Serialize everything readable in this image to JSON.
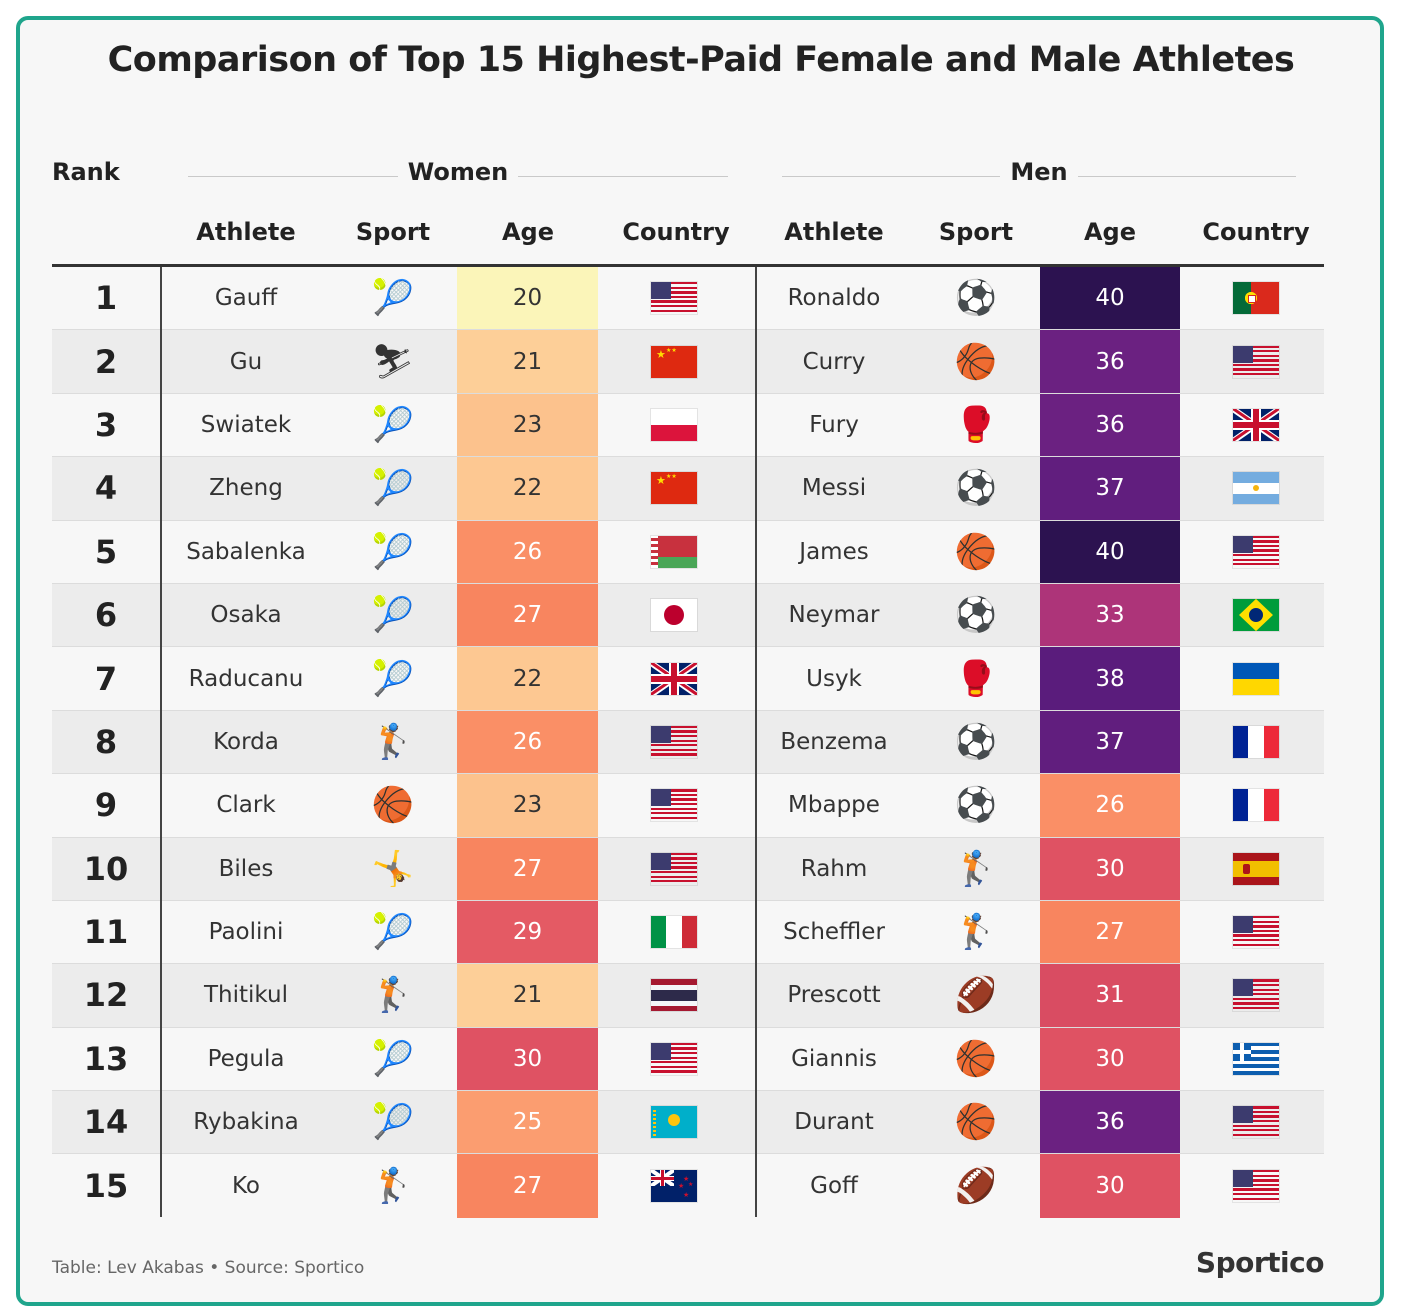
{
  "title": "Comparison of Top 15 Highest-Paid Female and Male Athletes",
  "headers": {
    "rank": "Rank",
    "women": "Women",
    "men": "Men",
    "athlete": "Athlete",
    "sport": "Sport",
    "age": "Age",
    "country": "Country"
  },
  "footer": {
    "credit": "Table: Lev Akabas • Source: Sportico",
    "brand": "Sportico"
  },
  "sport_glyphs": {
    "tennis": "🎾",
    "skiing": "⛷",
    "golf": "🏌",
    "basketball": "🏀",
    "gymnastics": "🤸",
    "soccer": "⚽",
    "boxing": "🥊",
    "football": "🏈"
  },
  "age_colors": {
    "20": "#fbf5b9",
    "21": "#fdcf98",
    "22": "#fdc892",
    "23": "#fcc28d",
    "25": "#fb9d70",
    "26": "#fa8f66",
    "27": "#f8855f",
    "29": "#e45a64",
    "30": "#df5263",
    "31": "#d94c62",
    "33": "#ad3479",
    "36": "#6b2181",
    "37": "#611e7e",
    "38": "#5a1c7c",
    "40": "#2c1250"
  },
  "chart_data": {
    "type": "table",
    "title": "Comparison of Top 15 Highest-Paid Female and Male Athletes",
    "columns": [
      "Rank",
      "Athlete",
      "Sport",
      "Age",
      "Country",
      "Athlete",
      "Sport",
      "Age",
      "Country"
    ],
    "rows": [
      {
        "rank": "1",
        "women": {
          "athlete": "Gauff",
          "sport": "tennis",
          "age": 20,
          "country": "us"
        },
        "men": {
          "athlete": "Ronaldo",
          "sport": "soccer",
          "age": 40,
          "country": "pt"
        }
      },
      {
        "rank": "2",
        "women": {
          "athlete": "Gu",
          "sport": "skiing",
          "age": 21,
          "country": "cn"
        },
        "men": {
          "athlete": "Curry",
          "sport": "basketball",
          "age": 36,
          "country": "us"
        }
      },
      {
        "rank": "3",
        "women": {
          "athlete": "Swiatek",
          "sport": "tennis",
          "age": 23,
          "country": "pl"
        },
        "men": {
          "athlete": "Fury",
          "sport": "boxing",
          "age": 36,
          "country": "gb"
        }
      },
      {
        "rank": "4",
        "women": {
          "athlete": "Zheng",
          "sport": "tennis",
          "age": 22,
          "country": "cn"
        },
        "men": {
          "athlete": "Messi",
          "sport": "soccer",
          "age": 37,
          "country": "ar"
        }
      },
      {
        "rank": "5",
        "women": {
          "athlete": "Sabalenka",
          "sport": "tennis",
          "age": 26,
          "country": "by"
        },
        "men": {
          "athlete": "James",
          "sport": "basketball",
          "age": 40,
          "country": "us"
        }
      },
      {
        "rank": "6",
        "women": {
          "athlete": "Osaka",
          "sport": "tennis",
          "age": 27,
          "country": "jp"
        },
        "men": {
          "athlete": "Neymar",
          "sport": "soccer",
          "age": 33,
          "country": "br"
        }
      },
      {
        "rank": "7",
        "women": {
          "athlete": "Raducanu",
          "sport": "tennis",
          "age": 22,
          "country": "gb"
        },
        "men": {
          "athlete": "Usyk",
          "sport": "boxing",
          "age": 38,
          "country": "ua"
        }
      },
      {
        "rank": "8",
        "women": {
          "athlete": "Korda",
          "sport": "golf",
          "age": 26,
          "country": "us"
        },
        "men": {
          "athlete": "Benzema",
          "sport": "soccer",
          "age": 37,
          "country": "fr"
        }
      },
      {
        "rank": "9",
        "women": {
          "athlete": "Clark",
          "sport": "basketball",
          "age": 23,
          "country": "us"
        },
        "men": {
          "athlete": "Mbappe",
          "sport": "soccer",
          "age": 26,
          "country": "fr"
        }
      },
      {
        "rank": "10",
        "women": {
          "athlete": "Biles",
          "sport": "gymnastics",
          "age": 27,
          "country": "us"
        },
        "men": {
          "athlete": "Rahm",
          "sport": "golf",
          "age": 30,
          "country": "es"
        }
      },
      {
        "rank": "11",
        "women": {
          "athlete": "Paolini",
          "sport": "tennis",
          "age": 29,
          "country": "it"
        },
        "men": {
          "athlete": "Scheffler",
          "sport": "golf",
          "age": 27,
          "country": "us"
        }
      },
      {
        "rank": "12",
        "women": {
          "athlete": "Thitikul",
          "sport": "golf",
          "age": 21,
          "country": "th"
        },
        "men": {
          "athlete": "Prescott",
          "sport": "football",
          "age": 31,
          "country": "us"
        }
      },
      {
        "rank": "13",
        "women": {
          "athlete": "Pegula",
          "sport": "tennis",
          "age": 30,
          "country": "us"
        },
        "men": {
          "athlete": "Giannis",
          "sport": "basketball",
          "age": 30,
          "country": "gr"
        }
      },
      {
        "rank": "14",
        "women": {
          "athlete": "Rybakina",
          "sport": "tennis",
          "age": 25,
          "country": "kz"
        },
        "men": {
          "athlete": "Durant",
          "sport": "basketball",
          "age": 36,
          "country": "us"
        }
      },
      {
        "rank": "15",
        "women": {
          "athlete": "Ko",
          "sport": "golf",
          "age": 27,
          "country": "nz"
        },
        "men": {
          "athlete": "Goff",
          "sport": "football",
          "age": 30,
          "country": "us"
        }
      }
    ]
  }
}
